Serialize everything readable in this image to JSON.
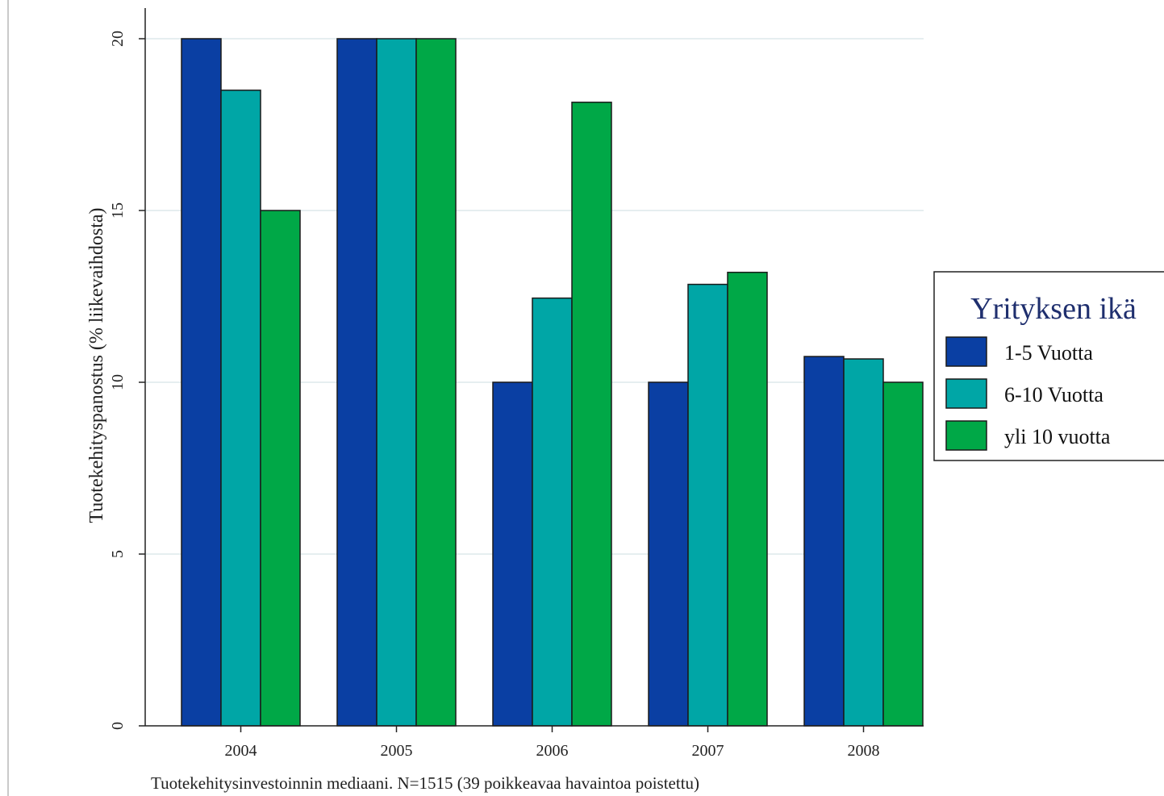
{
  "chart_data": {
    "type": "bar",
    "categories": [
      "2004",
      "2005",
      "2006",
      "2007",
      "2008"
    ],
    "series": [
      {
        "name": "1-5 Vuotta",
        "color": "#0a3fa3",
        "values": [
          20,
          20,
          10,
          10,
          10.75
        ]
      },
      {
        "name": "6-10 Vuotta",
        "color": "#00a6a6",
        "values": [
          18.5,
          20,
          12.45,
          12.85,
          10.68
        ]
      },
      {
        "name": "yli 10 vuotta",
        "color": "#00a847",
        "values": [
          15,
          20,
          18.15,
          13.2,
          10
        ]
      }
    ],
    "ylabel": "Tuotekehityspanostus (% liikevaihdosta)",
    "xlabel": "",
    "note": "Tuotekehitysinvestoinnin mediaani. N=1515 (39 poikkeavaa havaintoa poistettu)",
    "ylim": [
      0,
      20
    ],
    "yticks": [
      "0",
      "5",
      "10",
      "15",
      "20"
    ],
    "grid": true,
    "legend": {
      "title": "Yrityksen ikä",
      "placement": "right"
    }
  }
}
